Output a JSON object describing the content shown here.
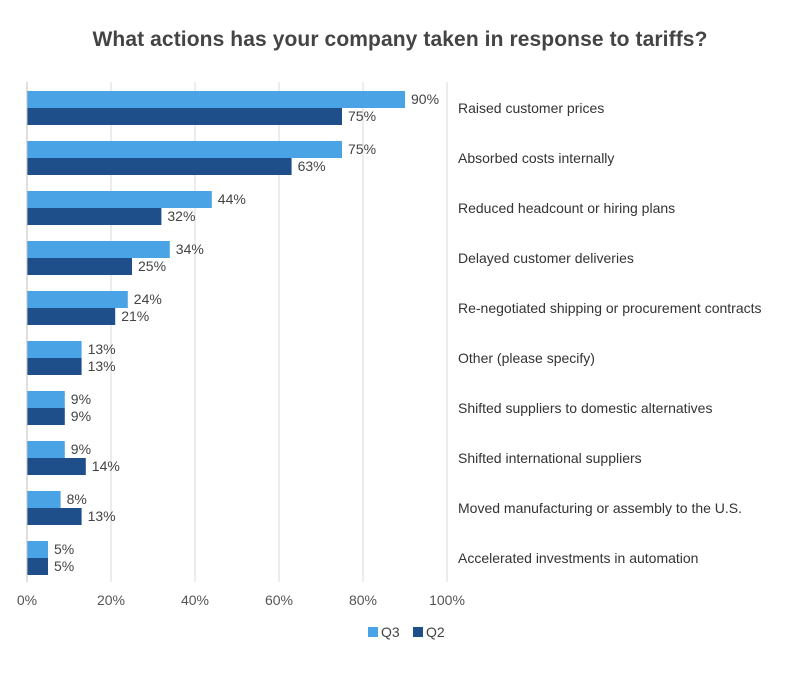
{
  "chart_data": {
    "type": "bar",
    "orientation": "horizontal",
    "title": "What actions has your company taken in response to tariffs?",
    "categories": [
      "Raised customer prices",
      "Absorbed costs internally",
      "Reduced headcount or hiring plans",
      "Delayed customer deliveries",
      "Re-negotiated shipping or procurement contracts",
      "Other (please specify)",
      "Shifted suppliers to domestic alternatives",
      "Shifted international suppliers",
      "Moved manufacturing or assembly to the U.S.",
      "Accelerated investments in automation"
    ],
    "series": [
      {
        "name": "Q3",
        "color": "#4aa3e4",
        "values": [
          90,
          75,
          44,
          34,
          24,
          13,
          9,
          9,
          8,
          5
        ]
      },
      {
        "name": "Q2",
        "color": "#1f4f8a",
        "values": [
          75,
          63,
          32,
          25,
          21,
          13,
          9,
          14,
          13,
          5
        ]
      }
    ],
    "data_label_suffix": "%",
    "xlim": [
      0,
      100
    ],
    "x_ticks": [
      0,
      20,
      40,
      60,
      80,
      100
    ],
    "x_tick_labels": [
      "0%",
      "20%",
      "40%",
      "60%",
      "80%",
      "100%"
    ],
    "grid": true,
    "legend_position": "bottom"
  }
}
